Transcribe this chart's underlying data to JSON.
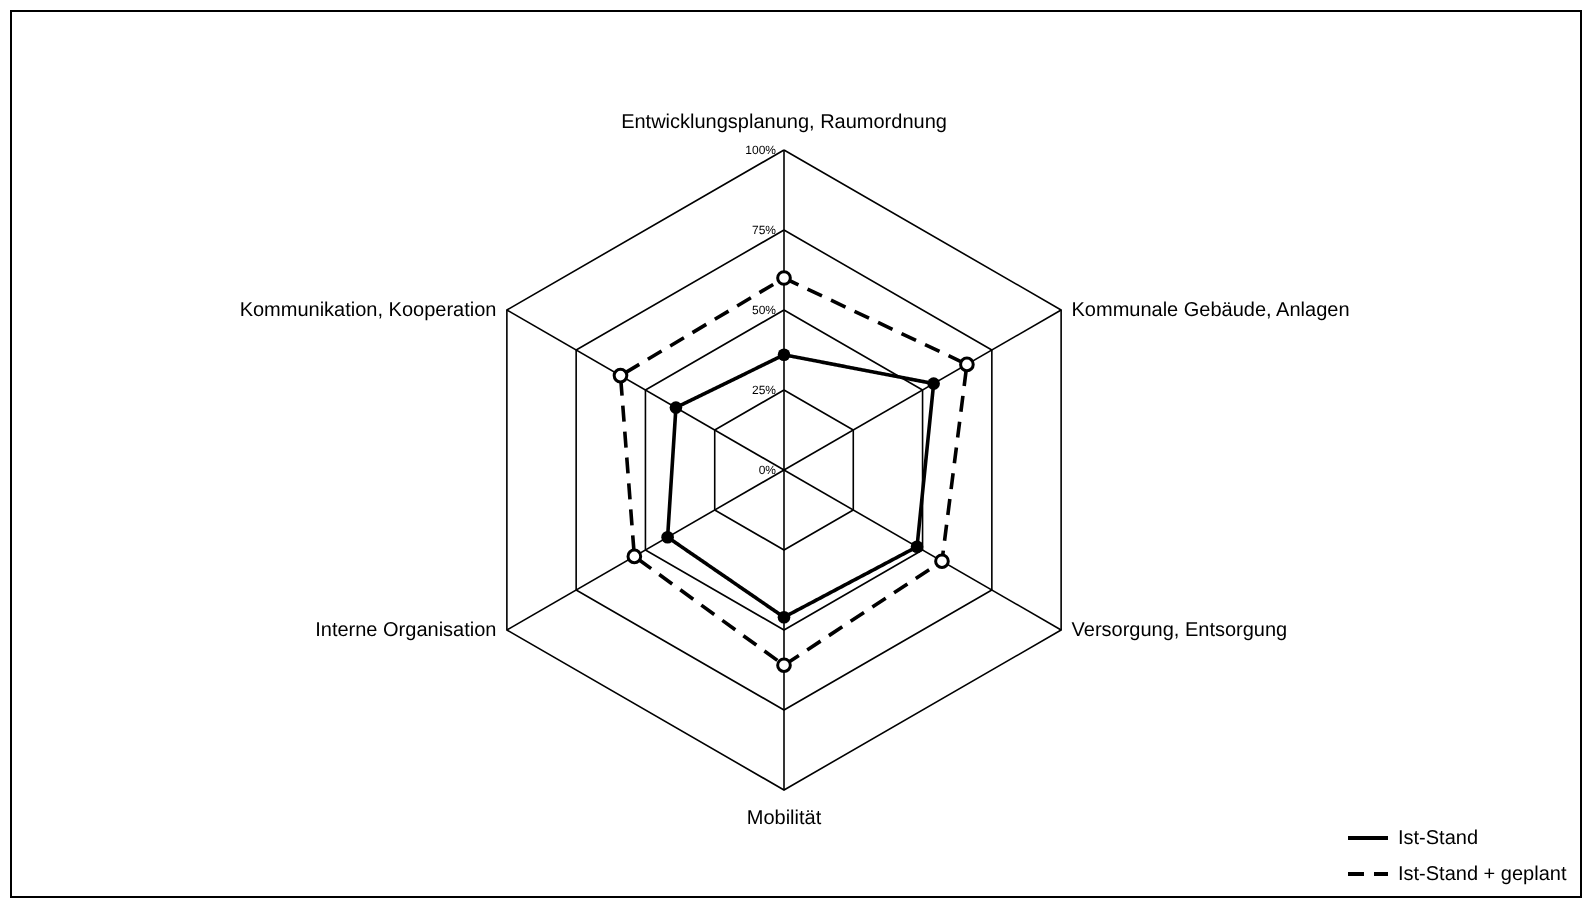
{
  "chart_data": {
    "type": "radar",
    "categories": [
      "Entwicklungsplanung, Raumordnung",
      "Kommunale Gebäude, Anlagen",
      "Versorgung, Entsorgung",
      "Mobilität",
      "Interne Organisation",
      "Kommunikation, Kooperation"
    ],
    "series": [
      {
        "name": "Ist-Stand",
        "color": "#000000",
        "values": [
          36,
          54,
          48,
          46,
          42,
          39
        ],
        "marker": "circle",
        "line_style": "solid"
      },
      {
        "name": "Ist-Stand + geplant",
        "color": "#000000",
        "values": [
          60,
          66,
          57,
          61,
          54,
          59
        ],
        "marker": "circle",
        "line_style": "dashed"
      }
    ],
    "ylim": [
      0,
      100
    ],
    "yticks": [
      {
        "value": 0,
        "label": "0%"
      },
      {
        "value": 25,
        "label": "25%"
      },
      {
        "value": 50,
        "label": "50%"
      },
      {
        "value": 75,
        "label": "75%"
      },
      {
        "value": 100,
        "label": "100%"
      }
    ],
    "grid": true,
    "legend": "bottom right"
  }
}
